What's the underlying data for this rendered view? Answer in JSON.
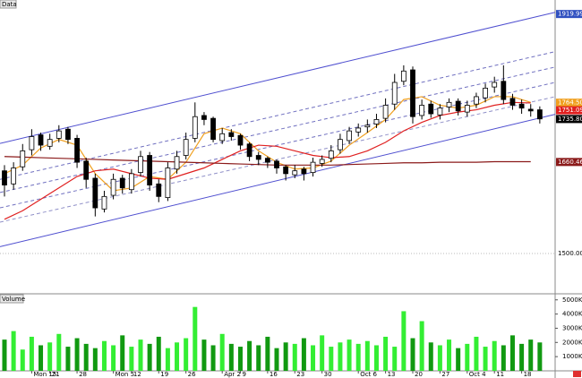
{
  "chart_data": {
    "type": "candlestick",
    "title": "Data",
    "volume_title": "Volume",
    "categories": [
      null,
      null,
      null,
      "Mon 15",
      null,
      "21",
      null,
      null,
      "28",
      null,
      null,
      null,
      "Mon 5",
      null,
      "12",
      null,
      null,
      "19",
      null,
      null,
      "26",
      null,
      null,
      null,
      "Apr 2",
      null,
      "9",
      null,
      null,
      "16",
      null,
      null,
      "23",
      null,
      null,
      "30",
      null,
      null,
      null,
      "Oct 6",
      null,
      null,
      "13",
      null,
      null,
      "20",
      null,
      null,
      "27",
      null,
      null,
      "Oct 4",
      null,
      null,
      "11",
      null,
      null,
      "18",
      null,
      null
    ],
    "open": [
      1645,
      1622,
      1652,
      1682,
      1708,
      1688,
      1702,
      1718,
      1702,
      1662,
      1632,
      1578,
      1602,
      1632,
      1612,
      1642,
      1672,
      1622,
      1598,
      1648,
      1672,
      1702,
      1742,
      1737,
      1698,
      1712,
      1707,
      1692,
      1672,
      1667,
      1662,
      1652,
      1638,
      1648,
      1642,
      1658,
      1667,
      1682,
      1698,
      1713,
      1722,
      1727,
      1737,
      1762,
      1802,
      1822,
      1742,
      1762,
      1743,
      1757,
      1767,
      1748,
      1762,
      1773,
      1792,
      1802,
      1772,
      1762,
      1753,
      1752
    ],
    "high": [
      1655,
      1660,
      1692,
      1718,
      1712,
      1710,
      1725,
      1722,
      1708,
      1668,
      1640,
      1610,
      1640,
      1638,
      1648,
      1680,
      1678,
      1630,
      1660,
      1680,
      1712,
      1765,
      1748,
      1740,
      1720,
      1718,
      1710,
      1695,
      1678,
      1670,
      1665,
      1655,
      1655,
      1652,
      1668,
      1672,
      1690,
      1710,
      1722,
      1728,
      1735,
      1745,
      1772,
      1815,
      1830,
      1828,
      1770,
      1768,
      1762,
      1772,
      1772,
      1768,
      1782,
      1798,
      1810,
      1830,
      1780,
      1770,
      1762,
      1758
    ],
    "low": [
      1600,
      1612,
      1645,
      1672,
      1680,
      1682,
      1695,
      1692,
      1650,
      1615,
      1565,
      1572,
      1595,
      1605,
      1605,
      1635,
      1610,
      1590,
      1592,
      1640,
      1665,
      1695,
      1725,
      1695,
      1692,
      1698,
      1682,
      1662,
      1655,
      1650,
      1640,
      1628,
      1632,
      1628,
      1635,
      1652,
      1660,
      1675,
      1692,
      1705,
      1712,
      1720,
      1730,
      1752,
      1795,
      1728,
      1735,
      1738,
      1735,
      1748,
      1742,
      1740,
      1755,
      1765,
      1782,
      1762,
      1752,
      1745,
      1740,
      1728
    ],
    "close": [
      1620,
      1650,
      1680,
      1705,
      1690,
      1700,
      1715,
      1700,
      1660,
      1630,
      1580,
      1600,
      1630,
      1615,
      1640,
      1670,
      1620,
      1600,
      1650,
      1670,
      1700,
      1740,
      1735,
      1700,
      1710,
      1705,
      1690,
      1670,
      1665,
      1660,
      1650,
      1640,
      1645,
      1640,
      1660,
      1665,
      1680,
      1700,
      1715,
      1720,
      1725,
      1735,
      1760,
      1800,
      1820,
      1740,
      1760,
      1745,
      1755,
      1765,
      1750,
      1760,
      1775,
      1790,
      1800,
      1770,
      1760,
      1755,
      1750,
      1736
    ],
    "volume": [
      2200,
      2800,
      1500,
      2400,
      1800,
      2000,
      2600,
      1700,
      2300,
      1900,
      1600,
      2100,
      1800,
      2500,
      1700,
      2200,
      1900,
      2400,
      1600,
      2000,
      2300,
      4500,
      2200,
      1800,
      2600,
      1900,
      1700,
      2100,
      1800,
      2400,
      1600,
      2000,
      1900,
      2300,
      1800,
      2500,
      1700,
      2000,
      2200,
      1900,
      2100,
      1800,
      2400,
      1700,
      4200,
      2300,
      3500,
      2000,
      1800,
      2200,
      1600,
      1900,
      2400,
      1700,
      2100,
      1800,
      2500,
      1900,
      2200,
      2000
    ],
    "up_color": "#ffffff",
    "down_color": "#000000",
    "volume_up_color": "#33ee33",
    "volume_down_color": "#119911",
    "moving_averages": [
      {
        "color": "#f0a020",
        "x": [
          0,
          2,
          4,
          6,
          8,
          10,
          12,
          14,
          16,
          18,
          20,
          22,
          24,
          26,
          28,
          30,
          32,
          34,
          36,
          38,
          40,
          42,
          44,
          46,
          48,
          50,
          52,
          54,
          56,
          58
        ],
        "values": [
          1640,
          1655,
          1685,
          1700,
          1690,
          1640,
          1610,
          1615,
          1635,
          1630,
          1660,
          1710,
          1720,
          1710,
          1680,
          1660,
          1648,
          1650,
          1662,
          1690,
          1712,
          1735,
          1770,
          1775,
          1760,
          1755,
          1760,
          1775,
          1775,
          1765
        ]
      },
      {
        "color": "#e02020",
        "x": [
          0,
          2,
          4,
          6,
          8,
          10,
          12,
          14,
          16,
          18,
          20,
          22,
          24,
          26,
          28,
          30,
          32,
          34,
          36,
          38,
          40,
          42,
          44,
          46,
          48,
          50,
          52,
          54,
          56,
          58
        ],
        "values": [
          1560,
          1575,
          1595,
          1615,
          1635,
          1645,
          1648,
          1640,
          1632,
          1630,
          1640,
          1650,
          1665,
          1680,
          1690,
          1688,
          1680,
          1672,
          1668,
          1670,
          1680,
          1695,
          1715,
          1730,
          1742,
          1748,
          1752,
          1760,
          1765,
          1764
        ]
      },
      {
        "color": "#8b1a1a",
        "x": [
          0,
          2,
          4,
          6,
          8,
          10,
          12,
          14,
          16,
          18,
          20,
          22,
          24,
          26,
          28,
          30,
          32,
          34,
          36,
          38,
          40,
          42,
          44,
          46,
          48,
          50,
          52,
          54,
          56,
          58
        ],
        "values": [
          1670,
          1669,
          1668,
          1667,
          1666,
          1665,
          1664,
          1663,
          1662,
          1661,
          1660,
          1659,
          1658,
          1657,
          1656,
          1655,
          1655,
          1655,
          1655,
          1656,
          1657,
          1658,
          1659,
          1659,
          1660,
          1660,
          1660,
          1661,
          1661,
          1661
        ]
      }
    ],
    "channel_lines": [
      {
        "start": 1693,
        "end": 1923,
        "style": "solid",
        "color": "#5050d0"
      },
      {
        "start": 1630,
        "end": 1854,
        "style": "dashed",
        "color": "#7070c0"
      },
      {
        "start": 1607,
        "end": 1827,
        "style": "dashed",
        "color": "#7070c0"
      },
      {
        "start": 1580,
        "end": 1800,
        "style": "dashed",
        "color": "#7070c0"
      },
      {
        "start": 1555,
        "end": 1775,
        "style": "dashed",
        "color": "#9090c8"
      },
      {
        "start": 1512,
        "end": 1744,
        "style": "solid",
        "color": "#5050d0"
      }
    ],
    "price_labels": [
      {
        "value": 1919.996,
        "label": "1919.996",
        "color": "#3050c0"
      },
      {
        "value": 1764.5,
        "label": "1764.50",
        "color": "#f0a020"
      },
      {
        "value": 1751.09,
        "label": "1751.09",
        "color": "#e02020"
      },
      {
        "value": 1735.8,
        "label": "1735.80",
        "color": "#000000"
      },
      {
        "value": 1660.46,
        "label": "1660.46",
        "color": "#8b1a1a"
      }
    ],
    "ylim": [
      1434,
      1932
    ],
    "yticks": [
      {
        "value": 1500,
        "label": "1500.00"
      }
    ],
    "volume_ylim": [
      0,
      5300
    ],
    "volume_ticks": [
      {
        "value": 1000,
        "label": "1000K"
      },
      {
        "value": 2000,
        "label": "2000K"
      },
      {
        "value": 3000,
        "label": "3000K"
      },
      {
        "value": 4000,
        "label": "4000K"
      },
      {
        "value": 5000,
        "label": "5000K"
      }
    ]
  }
}
